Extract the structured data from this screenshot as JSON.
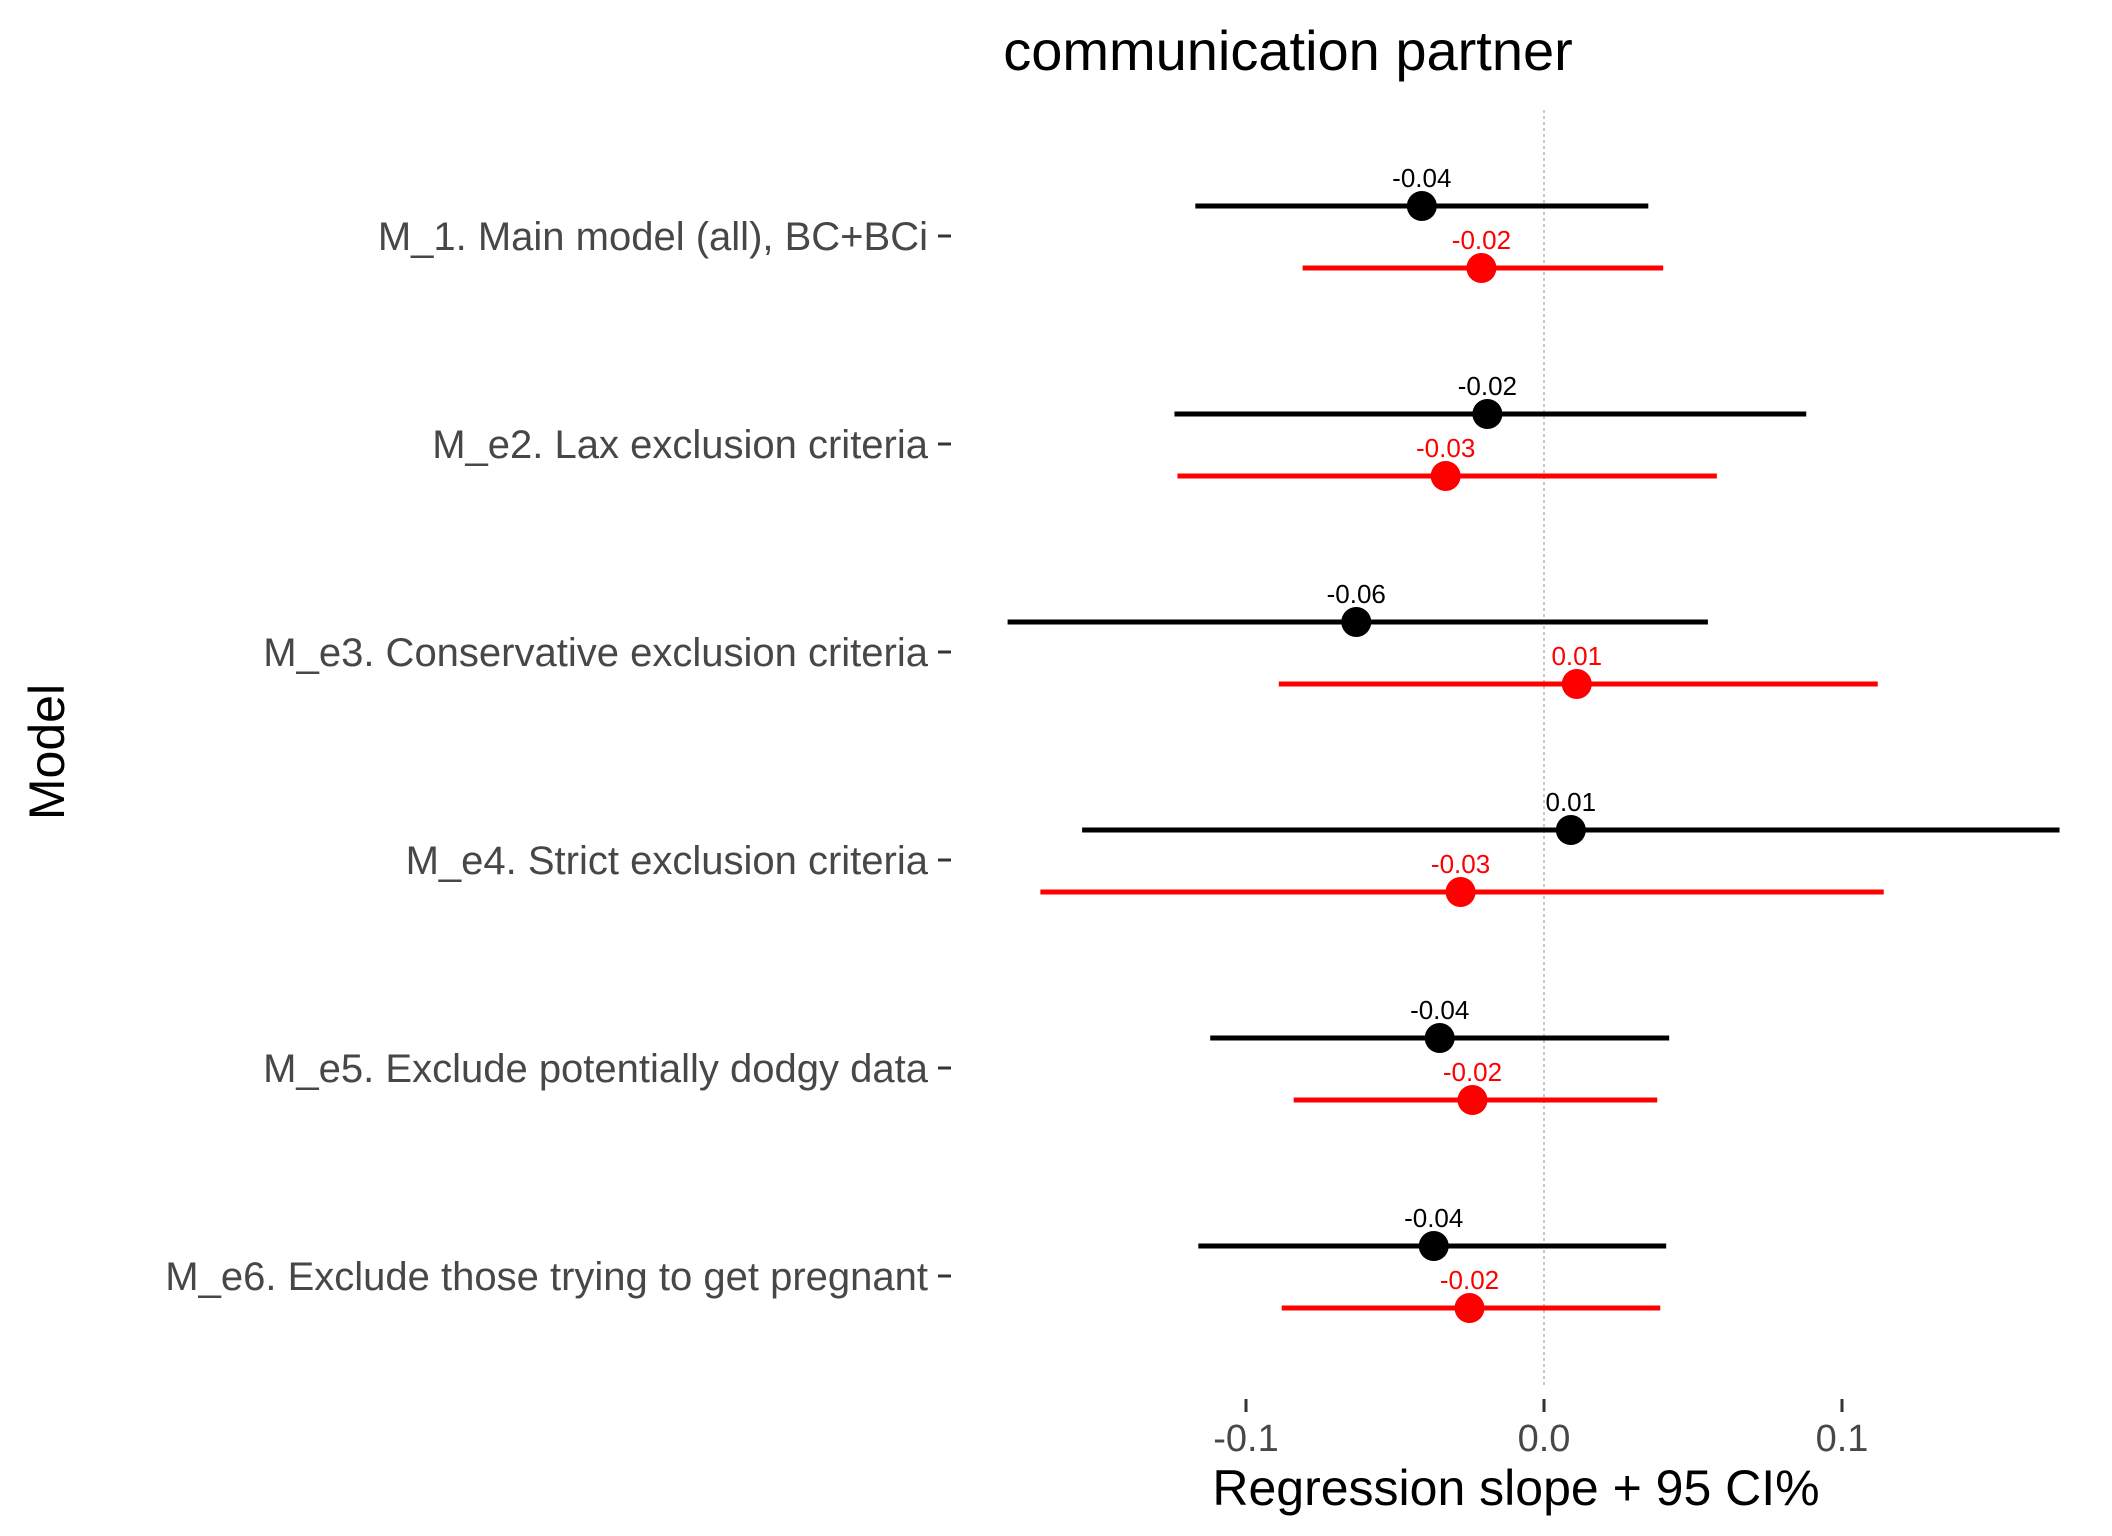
{
  "chart_data": {
    "type": "forest",
    "title": "communication partner",
    "xlabel": "Regression slope + 95 CI%",
    "ylabel": "Model",
    "xlim": [
      -0.2,
      0.175
    ],
    "x_ticks": [
      -0.1,
      0.0,
      0.1
    ],
    "x_tick_labels": [
      "-0.1",
      "0.0",
      "0.1"
    ],
    "reference_line": 0,
    "grid": false,
    "categories": [
      "M_1. Main model (all), BC+BCi",
      "M_e2. Lax exclusion criteria",
      "M_e3. Conservative exclusion criteria",
      "M_e4. Strict exclusion criteria",
      "M_e5. Exclude potentially dodgy data",
      "M_e6. Exclude those trying to get pregnant"
    ],
    "series": [
      {
        "color": "#000000",
        "estimates": [
          -0.041,
          -0.019,
          -0.063,
          0.009,
          -0.035,
          -0.037
        ],
        "lower": [
          -0.117,
          -0.124,
          -0.18,
          -0.155,
          -0.112,
          -0.116
        ],
        "upper": [
          0.035,
          0.088,
          0.055,
          0.173,
          0.042,
          0.041
        ],
        "labels": [
          "-0.04",
          "-0.02",
          "-0.06",
          "0.01",
          "-0.04",
          "-0.04"
        ]
      },
      {
        "color": "#ff0000",
        "estimates": [
          -0.021,
          -0.033,
          0.011,
          -0.028,
          -0.024,
          -0.025
        ],
        "lower": [
          -0.081,
          -0.123,
          -0.089,
          -0.169,
          -0.084,
          -0.088
        ],
        "upper": [
          0.04,
          0.058,
          0.112,
          0.114,
          0.038,
          0.039
        ],
        "labels": [
          "-0.02",
          "-0.03",
          "0.01",
          "-0.03",
          "-0.02",
          "-0.02"
        ]
      }
    ]
  }
}
